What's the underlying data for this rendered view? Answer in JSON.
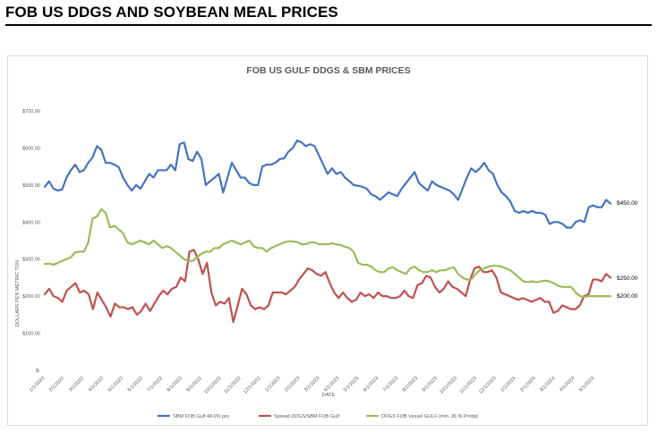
{
  "page": {
    "title": "FOB US DDGS AND SOYBEAN MEAL PRICES"
  },
  "chart_data": {
    "type": "line",
    "title": "FOB US GULF DDGS & SBM PRICES",
    "xlabel": "DATE",
    "ylabel": "DOLLARS PER METRIC TON",
    "ylim": [
      0,
      700
    ],
    "yticks": [
      0,
      100,
      200,
      300,
      400,
      500,
      600,
      700
    ],
    "ytick_labels": [
      "$-",
      "$100.00",
      "$200.00",
      "$300.00",
      "$400.00",
      "$500.00",
      "$600.00",
      "$700.00"
    ],
    "x_tick_labels": [
      "1/1/2022",
      "2/1/2022",
      "3/1/2022",
      "4/1/2022",
      "5/1/2022",
      "6/1/2022",
      "7/1/2022",
      "8/1/2022",
      "9/1/2022",
      "10/1/2022",
      "11/1/2022",
      "12/1/2022",
      "1/1/2023",
      "2/1/2023",
      "3/1/2023",
      "4/1/2023",
      "5/1/2023",
      "6/1/2023",
      "7/1/2023",
      "8/1/2023",
      "9/1/2023",
      "10/1/2023",
      "11/1/2023",
      "12/1/2023",
      "1/1/2024",
      "2/1/2024",
      "3/1/2024",
      "4/1/2024",
      "5/1/2024"
    ],
    "grid": false,
    "legend_position": "bottom",
    "end_labels": [
      "$450.00",
      "$250.00",
      "$200.00"
    ],
    "series": [
      {
        "name": "SBM FOB Gulf 48.0% pro",
        "color": "#4472c4",
        "values": [
          495,
          510,
          490,
          485,
          488,
          520,
          540,
          555,
          535,
          540,
          560,
          575,
          605,
          595,
          560,
          560,
          555,
          548,
          520,
          500,
          485,
          500,
          490,
          510,
          530,
          520,
          540,
          540,
          540,
          555,
          540,
          610,
          615,
          570,
          565,
          590,
          570,
          500,
          510,
          520,
          530,
          480,
          520,
          560,
          540,
          520,
          520,
          505,
          500,
          500,
          550,
          555,
          555,
          560,
          570,
          572,
          590,
          600,
          620,
          615,
          605,
          610,
          605,
          580,
          555,
          530,
          545,
          530,
          535,
          520,
          510,
          500,
          498,
          495,
          490,
          475,
          470,
          460,
          470,
          480,
          475,
          470,
          490,
          505,
          520,
          535,
          505,
          495,
          485,
          510,
          500,
          495,
          490,
          485,
          475,
          460,
          490,
          520,
          545,
          535,
          545,
          560,
          540,
          530,
          500,
          480,
          470,
          455,
          430,
          425,
          430,
          425,
          430,
          425,
          425,
          420,
          395,
          400,
          400,
          395,
          385,
          385,
          400,
          405,
          400,
          440,
          445,
          440,
          440,
          460,
          450
        ]
      },
      {
        "name": "Spread DDGS/SBM FOB Gulf",
        "color": "#c0504d",
        "values": [
          205,
          220,
          200,
          195,
          185,
          215,
          225,
          235,
          210,
          215,
          205,
          165,
          210,
          190,
          170,
          145,
          180,
          170,
          170,
          165,
          170,
          150,
          160,
          180,
          160,
          180,
          200,
          215,
          205,
          220,
          225,
          250,
          240,
          320,
          325,
          300,
          260,
          290,
          210,
          175,
          185,
          180,
          195,
          130,
          175,
          220,
          205,
          175,
          165,
          170,
          165,
          175,
          210,
          210,
          210,
          205,
          215,
          225,
          245,
          260,
          275,
          270,
          260,
          255,
          265,
          235,
          210,
          195,
          210,
          195,
          185,
          190,
          210,
          200,
          205,
          195,
          210,
          200,
          200,
          195,
          195,
          200,
          215,
          200,
          195,
          230,
          235,
          255,
          250,
          225,
          210,
          220,
          240,
          225,
          220,
          210,
          200,
          245,
          275,
          280,
          265,
          265,
          270,
          250,
          210,
          205,
          200,
          195,
          190,
          195,
          190,
          185,
          190,
          195,
          185,
          185,
          155,
          160,
          175,
          170,
          165,
          165,
          175,
          200,
          205,
          245,
          245,
          240,
          260,
          250
        ]
      },
      {
        "name": "DDGS FOB Vessel GULF  (min. 36 % Profat)",
        "color": "#9bbb59",
        "values": [
          287,
          288,
          285,
          290,
          295,
          300,
          305,
          318,
          320,
          320,
          345,
          410,
          415,
          435,
          425,
          385,
          390,
          380,
          370,
          345,
          340,
          345,
          350,
          345,
          340,
          350,
          340,
          330,
          335,
          330,
          320,
          310,
          300,
          295,
          295,
          305,
          315,
          320,
          320,
          330,
          330,
          340,
          345,
          350,
          345,
          340,
          345,
          350,
          335,
          330,
          330,
          320,
          330,
          335,
          340,
          345,
          348,
          348,
          346,
          340,
          340,
          345,
          345,
          340,
          340,
          340,
          343,
          340,
          338,
          333,
          330,
          320,
          290,
          285,
          285,
          280,
          270,
          265,
          265,
          275,
          278,
          270,
          265,
          260,
          275,
          280,
          270,
          265,
          265,
          270,
          265,
          270,
          270,
          275,
          278,
          260,
          250,
          245,
          245,
          260,
          270,
          275,
          280,
          282,
          282,
          280,
          275,
          270,
          260,
          250,
          240,
          238,
          240,
          238,
          240,
          242,
          240,
          235,
          228,
          225,
          225,
          225,
          210,
          200,
          198,
          200,
          200,
          200,
          200,
          200,
          200
        ]
      }
    ]
  }
}
